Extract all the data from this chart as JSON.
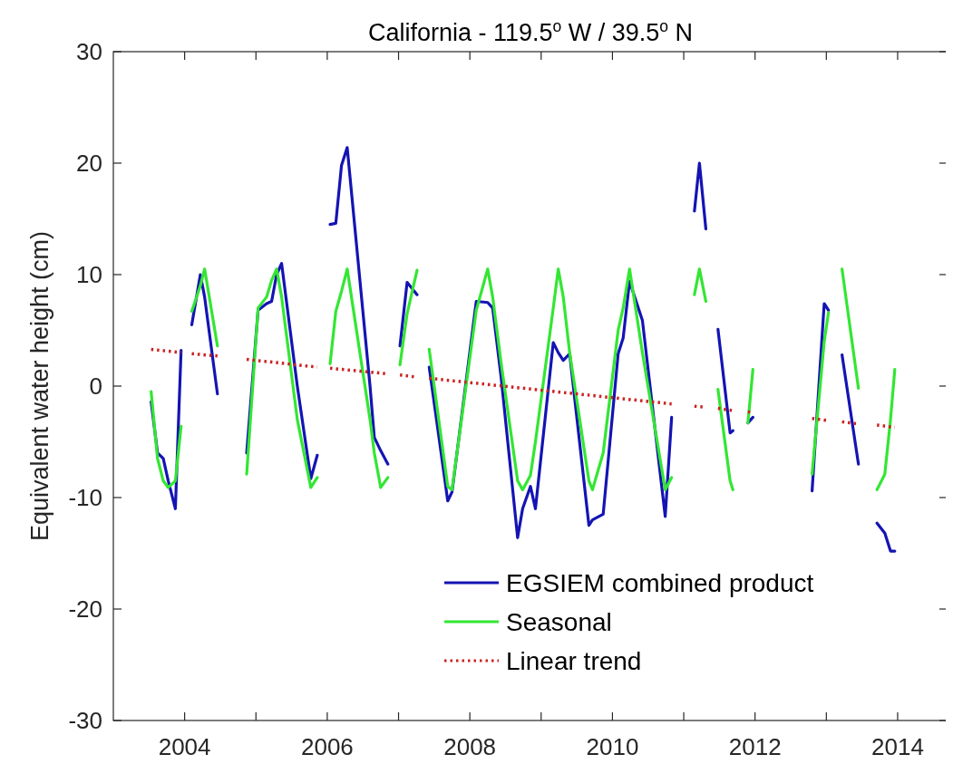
{
  "chart_data": {
    "type": "line",
    "title": "California - 119.5$^{o}$ W / 39.5$^{o}$ N",
    "ylabel": "Equivalent water height (cm)",
    "xlim": [
      2003,
      2014.7
    ],
    "xticks": [
      {
        "value": 2004,
        "label": "2004"
      },
      {
        "value": 2005,
        "label": null
      },
      {
        "value": 2006,
        "label": "2006"
      },
      {
        "value": 2007,
        "label": null
      },
      {
        "value": 2008,
        "label": "2008"
      },
      {
        "value": 2009,
        "label": null
      },
      {
        "value": 2010,
        "label": "2010"
      },
      {
        "value": 2011,
        "label": null
      },
      {
        "value": 2012,
        "label": "2012"
      },
      {
        "value": 2013,
        "label": null
      },
      {
        "value": 2014,
        "label": "2014"
      }
    ],
    "ylim": [
      -30,
      30
    ],
    "yticks": [
      -30,
      -20,
      -10,
      0,
      10,
      20,
      30
    ],
    "grid": false,
    "legend": "bottom right",
    "marker": "none",
    "series": [
      {
        "name": "EGSIEM combined product",
        "color": "#1414b4",
        "line_style": "solid",
        "x": [
          2003.53,
          2003.62,
          2003.7,
          2003.77,
          2003.87,
          2003.95,
          2004.02,
          2004.1,
          2004.22,
          2004.28,
          2004.46,
          2004.65,
          2004.87,
          2005.03,
          2005.15,
          2005.22,
          2005.29,
          2005.36,
          2005.58,
          2005.77,
          2005.86,
          2005.95,
          2006.04,
          2006.12,
          2006.2,
          2006.28,
          2006.6,
          2006.66,
          2006.75,
          2006.85,
          2006.93,
          2007.02,
          2007.12,
          2007.26,
          2007.35,
          2007.43,
          2007.69,
          2007.75,
          2008.09,
          2008.25,
          2008.32,
          2008.44,
          2008.67,
          2008.74,
          2008.85,
          2008.92,
          2009.17,
          2009.24,
          2009.31,
          2009.4,
          2009.67,
          2009.72,
          2009.87,
          2010.08,
          2010.15,
          2010.24,
          2010.42,
          2010.74,
          2010.83,
          2011.0,
          2011.15,
          2011.22,
          2011.31,
          2011.4,
          2011.48,
          2011.65,
          2011.69,
          2011.8,
          2011.9,
          2011.97,
          2012.4,
          2012.8,
          2012.97,
          2013.03,
          2013.12,
          2013.22,
          2013.45,
          2013.6,
          2013.71,
          2013.82,
          2013.9,
          2013.96
        ],
        "values": [
          -1.4,
          -6,
          -6.5,
          -8.5,
          -11,
          3.2,
          null,
          5.5,
          10,
          8,
          -0.7,
          null,
          -6,
          6.8,
          7.4,
          7.6,
          10,
          11,
          0,
          -8.3,
          -6.2,
          null,
          14.5,
          14.6,
          19.8,
          21.4,
          0,
          -4.6,
          -5.8,
          -7,
          null,
          3.6,
          9.3,
          8.2,
          null,
          1.7,
          -10.3,
          -9.5,
          7.6,
          7.5,
          7,
          0.7,
          -13.6,
          -11,
          -9,
          -11,
          3.9,
          3,
          2.3,
          2.9,
          -12.5,
          -12,
          -11.5,
          2.9,
          4.3,
          9.4,
          5.9,
          -11.7,
          -2.8,
          null,
          15.7,
          20,
          14.1,
          null,
          5.1,
          -4.2,
          -4,
          null,
          -3.3,
          -2.8,
          null,
          -9.4,
          7.4,
          6.8,
          null,
          2.8,
          -7,
          null,
          -12.3,
          -13.2,
          -14.8,
          -14.8
        ]
      },
      {
        "name": "Seasonal",
        "color": "#33e633",
        "line_style": "solid",
        "x": [
          2003.53,
          2003.62,
          2003.7,
          2003.77,
          2003.87,
          2003.95,
          2004.02,
          2004.1,
          2004.22,
          2004.28,
          2004.46,
          2004.65,
          2004.87,
          2005.03,
          2005.15,
          2005.22,
          2005.29,
          2005.36,
          2005.58,
          2005.77,
          2005.86,
          2005.95,
          2006.04,
          2006.12,
          2006.2,
          2006.28,
          2006.6,
          2006.66,
          2006.75,
          2006.85,
          2006.93,
          2007.02,
          2007.12,
          2007.26,
          2007.35,
          2007.43,
          2007.69,
          2007.75,
          2008.09,
          2008.25,
          2008.32,
          2008.44,
          2008.67,
          2008.74,
          2008.85,
          2008.92,
          2009.17,
          2009.24,
          2009.31,
          2009.4,
          2009.67,
          2009.72,
          2009.87,
          2010.08,
          2010.15,
          2010.24,
          2010.42,
          2010.74,
          2010.83,
          2011.0,
          2011.15,
          2011.22,
          2011.31,
          2011.4,
          2011.48,
          2011.65,
          2011.69,
          2011.8,
          2011.9,
          2011.97,
          2012.4,
          2012.8,
          2012.97,
          2013.03,
          2013.12,
          2013.22,
          2013.45,
          2013.6,
          2013.71,
          2013.82,
          2013.9,
          2013.96
        ],
        "values": [
          -0.5,
          -6.5,
          -8.5,
          -9.1,
          -8.5,
          -3.6,
          null,
          6.7,
          9,
          10.5,
          3.6,
          null,
          -7.9,
          7,
          8,
          9.5,
          10.5,
          8,
          -3,
          -9.1,
          -8.2,
          null,
          2,
          6.7,
          8.5,
          10.5,
          -3,
          -6,
          -9.1,
          -8.2,
          null,
          1.9,
          6.5,
          10.4,
          null,
          3.3,
          -9,
          -9.3,
          6.8,
          10.5,
          8,
          2,
          -8.5,
          -9.3,
          -8,
          -5,
          7,
          10.5,
          8,
          3,
          -8.5,
          -9.3,
          -6,
          5,
          7,
          10.5,
          3,
          -9.3,
          -8.2,
          null,
          8.2,
          10.5,
          7.6,
          null,
          -0.3,
          -8.5,
          -9.3,
          null,
          -3.3,
          1.5,
          null,
          -7.9,
          4,
          6.6,
          null,
          10.5,
          -0.2,
          null,
          -9.3,
          -7.9,
          -3,
          1.5
        ]
      },
      {
        "name": "Linear trend",
        "color": "#cc2222",
        "line_style": "dotted",
        "x": [
          2003.53,
          2003.95,
          2004.02,
          2004.1,
          2004.46,
          2004.65,
          2004.87,
          2005.86,
          2005.95,
          2006.04,
          2006.85,
          2006.93,
          2007.02,
          2007.26,
          2007.35,
          2007.43,
          2010.83,
          2011.0,
          2011.15,
          2011.31,
          2011.4,
          2011.48,
          2011.69,
          2011.8,
          2011.9,
          2011.97,
          2012.4,
          2012.8,
          2013.03,
          2013.12,
          2013.22,
          2013.45,
          2013.6,
          2013.71,
          2013.96
        ],
        "values": [
          3.3,
          3.0,
          null,
          2.9,
          2.7,
          null,
          2.4,
          1.7,
          null,
          1.6,
          1.1,
          null,
          1.0,
          0.8,
          null,
          0.7,
          -1.6,
          null,
          -1.8,
          -1.9,
          null,
          -2.0,
          -2.2,
          null,
          -2.3,
          -2.4,
          null,
          -2.9,
          -3.1,
          null,
          -3.2,
          -3.4,
          null,
          -3.5,
          -3.7
        ]
      }
    ]
  }
}
